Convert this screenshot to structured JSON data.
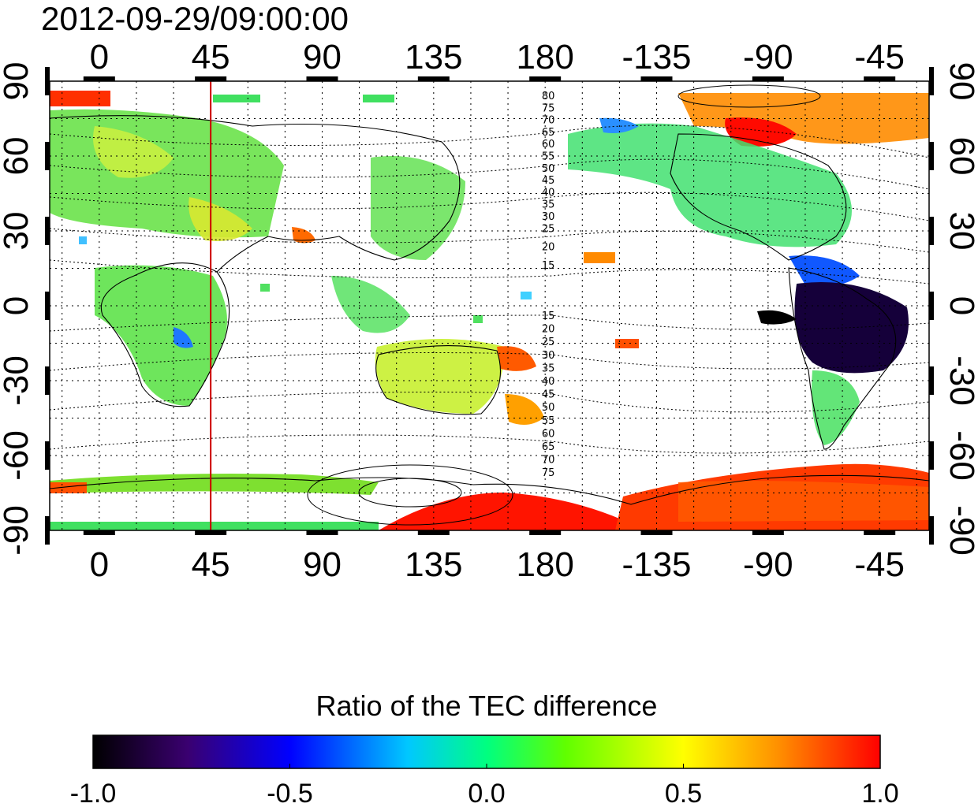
{
  "title": "2012-09-29/09:00:00",
  "lon_ticks": [
    "0",
    "45",
    "90",
    "135",
    "180",
    "-135",
    "-90",
    "-45"
  ],
  "lat_ticks": [
    "90",
    "60",
    "30",
    "0",
    "-30",
    "-60",
    "-90"
  ],
  "map": {
    "lon_range_deg_east": [
      -20,
      335
    ],
    "lat_range": [
      -90,
      90
    ],
    "grid": "dotted, 15° longitude / 15° latitude",
    "marked_meridian_lon": 45,
    "marked_meridian_color": "#cc0000",
    "contour_labels_north": [
      "80",
      "75",
      "70",
      "65",
      "60",
      "55",
      "50",
      "45",
      "40",
      "35",
      "30",
      "25",
      "20",
      "15"
    ],
    "contour_labels_south": [
      "15",
      "20",
      "25",
      "30",
      "35",
      "40",
      "45",
      "50",
      "55",
      "60",
      "65",
      "70",
      "75"
    ]
  },
  "colorbar": {
    "title": "Ratio of the TEC difference",
    "min": -1.0,
    "max": 1.0,
    "tick_labels": [
      "-1.0",
      "-0.5",
      "0.0",
      "0.5",
      "1.0"
    ],
    "colors": [
      "#000000",
      "#3a0070",
      "#0000ff",
      "#00ffff",
      "#00ff00",
      "#ffff00",
      "#ff8000",
      "#ff0000"
    ]
  }
}
